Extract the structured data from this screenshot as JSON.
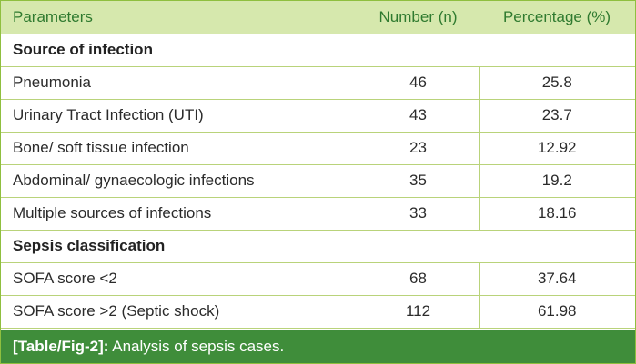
{
  "table": {
    "headers": {
      "parameters": "Parameters",
      "number": "Number (n)",
      "percentage": "Percentage (%)"
    },
    "sections": [
      {
        "title": "Source of infection",
        "rows": [
          {
            "label": "Pneumonia",
            "number": "46",
            "percentage": "25.8"
          },
          {
            "label": "Urinary Tract Infection (UTI)",
            "number": "43",
            "percentage": "23.7"
          },
          {
            "label": "Bone/ soft tissue infection",
            "number": "23",
            "percentage": "12.92"
          },
          {
            "label": "Abdominal/ gynaecologic infections",
            "number": "35",
            "percentage": "19.2"
          },
          {
            "label": "Multiple sources of infections",
            "number": "33",
            "percentage": "18.16"
          }
        ]
      },
      {
        "title": "Sepsis classification",
        "rows": [
          {
            "label": "SOFA score <2",
            "number": "68",
            "percentage": "37.64"
          },
          {
            "label": "SOFA score >2 (Septic shock)",
            "number": "112",
            "percentage": "61.98"
          }
        ]
      }
    ]
  },
  "caption": {
    "tag": "[Table/Fig-2]:",
    "text": " Analysis of sepsis cases."
  },
  "colors": {
    "header_bg": "#d6e8ad",
    "header_text": "#2f7a2f",
    "caption_bg": "#3f8d3a",
    "rule": "#b9d37a"
  }
}
